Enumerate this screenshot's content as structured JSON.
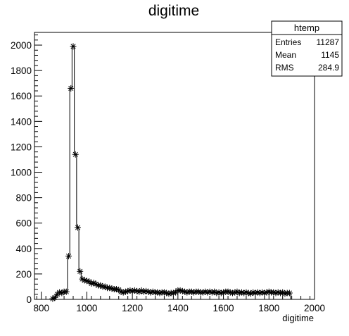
{
  "chart_data": {
    "type": "histogram",
    "title": "digitime",
    "xlabel": "digitime",
    "ylabel": "",
    "xlim": [
      770,
      2000
    ],
    "ylim": [
      0,
      2100
    ],
    "grid": false,
    "xticks": [
      "800",
      "1000",
      "1200",
      "1400",
      "1600",
      "1800",
      "2000"
    ],
    "yticks": [
      "0",
      "200",
      "400",
      "600",
      "800",
      "1000",
      "1200",
      "1400",
      "1600",
      "1800",
      "2000"
    ],
    "stats_box": {
      "name": "htemp",
      "rows": [
        {
          "label": "Entries",
          "value": "11287"
        },
        {
          "label": "Mean",
          "value": "1145"
        },
        {
          "label": "RMS",
          "value": "284.9"
        }
      ]
    },
    "series": [
      {
        "marker": "asterisk",
        "x": [
          850,
          860,
          870,
          880,
          890,
          900,
          910,
          920,
          930,
          940,
          950,
          960,
          970,
          980,
          990,
          1000,
          1010,
          1020,
          1030,
          1040,
          1050,
          1060,
          1070,
          1080,
          1090,
          1100,
          1110,
          1120,
          1130,
          1140,
          1150,
          1160,
          1170,
          1180,
          1190,
          1200,
          1210,
          1220,
          1230,
          1240,
          1250,
          1260,
          1270,
          1280,
          1290,
          1300,
          1310,
          1320,
          1330,
          1340,
          1350,
          1360,
          1370,
          1380,
          1390,
          1400,
          1410,
          1420,
          1430,
          1440,
          1450,
          1460,
          1470,
          1480,
          1490,
          1500,
          1510,
          1520,
          1530,
          1540,
          1550,
          1560,
          1570,
          1580,
          1590,
          1600,
          1610,
          1620,
          1630,
          1640,
          1650,
          1660,
          1670,
          1680,
          1690,
          1700,
          1710,
          1720,
          1730,
          1740,
          1750,
          1760,
          1770,
          1780,
          1790,
          1800,
          1810,
          1820,
          1830,
          1840,
          1850,
          1860,
          1870,
          1880,
          1890
        ],
        "y": [
          5,
          15,
          40,
          55,
          50,
          60,
          60,
          340,
          1660,
          1990,
          1140,
          565,
          220,
          160,
          150,
          145,
          140,
          125,
          130,
          120,
          110,
          110,
          100,
          100,
          90,
          90,
          85,
          80,
          80,
          75,
          60,
          55,
          60,
          65,
          70,
          65,
          70,
          65,
          60,
          70,
          60,
          65,
          60,
          55,
          60,
          55,
          55,
          50,
          55,
          55,
          50,
          45,
          50,
          50,
          55,
          70,
          70,
          65,
          60,
          55,
          60,
          60,
          55,
          60,
          60,
          55,
          55,
          60,
          55,
          60,
          55,
          60,
          50,
          55,
          50,
          55,
          60,
          60,
          55,
          50,
          55,
          60,
          50,
          55,
          50,
          55,
          50,
          45,
          55,
          50,
          55,
          50,
          55,
          50,
          55,
          60,
          55,
          55,
          50,
          55,
          50,
          55,
          45,
          50,
          50
        ]
      }
    ]
  }
}
